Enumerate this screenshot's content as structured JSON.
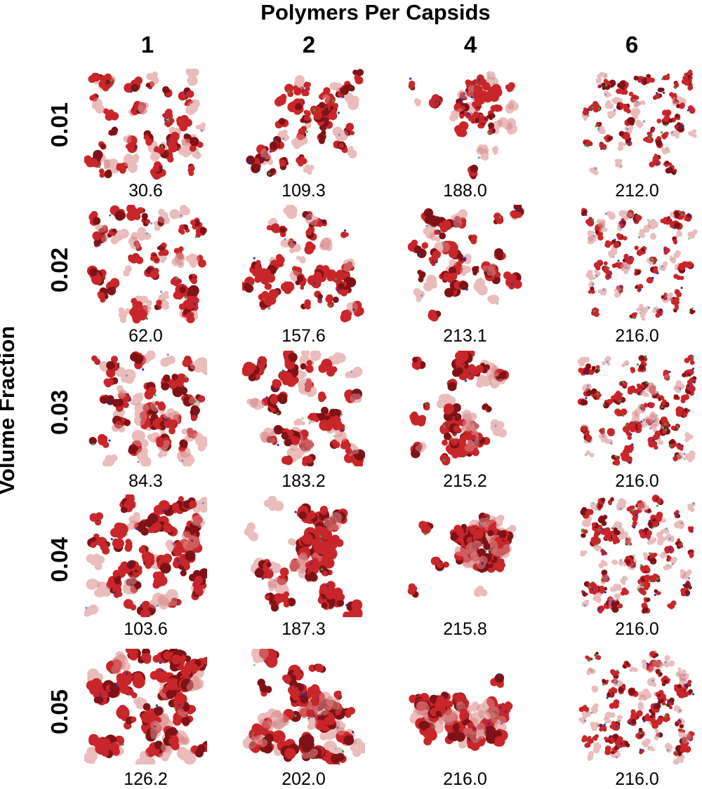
{
  "title": "Polymers Per Capsids",
  "y_axis_label": "Volume Fraction",
  "columns": [
    "1",
    "2",
    "4",
    "6"
  ],
  "rows": [
    {
      "label": "0.01",
      "values": [
        "30.6",
        "109.3",
        "188.0",
        "212.0"
      ]
    },
    {
      "label": "0.02",
      "values": [
        "62.0",
        "157.6",
        "213.1",
        "216.0"
      ]
    },
    {
      "label": "0.03",
      "values": [
        "84.3",
        "183.2",
        "215.2",
        "216.0"
      ]
    },
    {
      "label": "0.04",
      "values": [
        "103.6",
        "187.3",
        "215.8",
        "216.0"
      ]
    },
    {
      "label": "0.05",
      "values": [
        "126.2",
        "202.0",
        "216.0",
        "216.0"
      ]
    }
  ],
  "colors": {
    "capsid_red": "#c8262a",
    "capsid_dark": "#7e1216",
    "capsid_faded": "#d98686",
    "polymer_blue": "#2033b8",
    "polymer_green": "#2fa64a"
  }
}
